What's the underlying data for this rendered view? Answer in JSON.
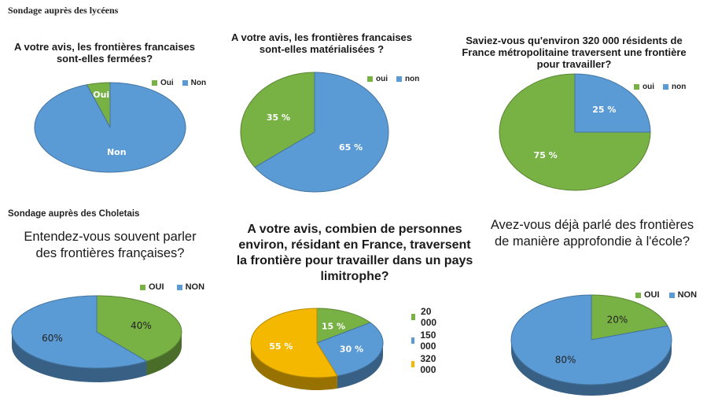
{
  "sections": {
    "top": "Sondage auprès des lycéens",
    "bottom": "Sondage auprès des Choletais"
  },
  "colors": {
    "green": "#78b144",
    "blue": "#5b9bd5",
    "orange": "#f5b800"
  },
  "chart_data": [
    {
      "type": "pie",
      "title": "A votre avis, les frontières francaises sont-elles fermées?",
      "categories": [
        "Oui",
        "Non"
      ],
      "values": [
        5,
        95
      ],
      "labels": [
        "Oui",
        "Non"
      ],
      "colors": [
        "#78b144",
        "#5b9bd5"
      ],
      "legend_labels": [
        "Oui",
        "Non"
      ],
      "legend": "top-right"
    },
    {
      "type": "pie",
      "title": "A votre avis, les frontières francaises sont-elles matérialisées ?",
      "categories": [
        "oui",
        "non"
      ],
      "values": [
        35,
        65
      ],
      "labels": [
        "35 %",
        "65 %"
      ],
      "colors": [
        "#78b144",
        "#5b9bd5"
      ],
      "legend_labels": [
        "oui",
        "non"
      ],
      "legend": "top-right"
    },
    {
      "type": "pie",
      "title": "Saviez-vous qu'environ 320 000 résidents de France métropolitaine traversent une frontière pour travailler?",
      "categories": [
        "oui",
        "non"
      ],
      "values": [
        75,
        25
      ],
      "labels": [
        "75 %",
        "25 %"
      ],
      "colors": [
        "#78b144",
        "#5b9bd5"
      ],
      "legend_labels": [
        "oui",
        "non"
      ],
      "legend": "top-right"
    },
    {
      "type": "pie",
      "title": "Entendez-vous souvent parler des frontières françaises?",
      "categories": [
        "OUI",
        "NON"
      ],
      "values": [
        40,
        60
      ],
      "labels": [
        "40%",
        "60%"
      ],
      "colors": [
        "#78b144",
        "#5b9bd5"
      ],
      "legend_labels": [
        "OUI",
        "NON"
      ],
      "legend": "top-right"
    },
    {
      "type": "pie",
      "title": "A votre avis, combien de personnes environ, résidant en France, traversent la frontière pour travailler dans un pays limitrophe?",
      "categories": [
        "20 000",
        "150 000",
        "320 000"
      ],
      "values": [
        15,
        30,
        55
      ],
      "labels": [
        "15 %",
        "30 %",
        "55 %"
      ],
      "colors": [
        "#78b144",
        "#5b9bd5",
        "#f5b800"
      ],
      "legend_labels": [
        "20 000",
        "150 000",
        "320 000"
      ],
      "legend": "right"
    },
    {
      "type": "pie",
      "title": "Avez-vous déjà parlé des frontières de manière approfondie à l'école?",
      "categories": [
        "OUI",
        "NON"
      ],
      "values": [
        20,
        80
      ],
      "labels": [
        "20%",
        "80%"
      ],
      "colors": [
        "#78b144",
        "#5b9bd5"
      ],
      "legend_labels": [
        "OUI",
        "NON"
      ],
      "legend": "top-right"
    }
  ]
}
